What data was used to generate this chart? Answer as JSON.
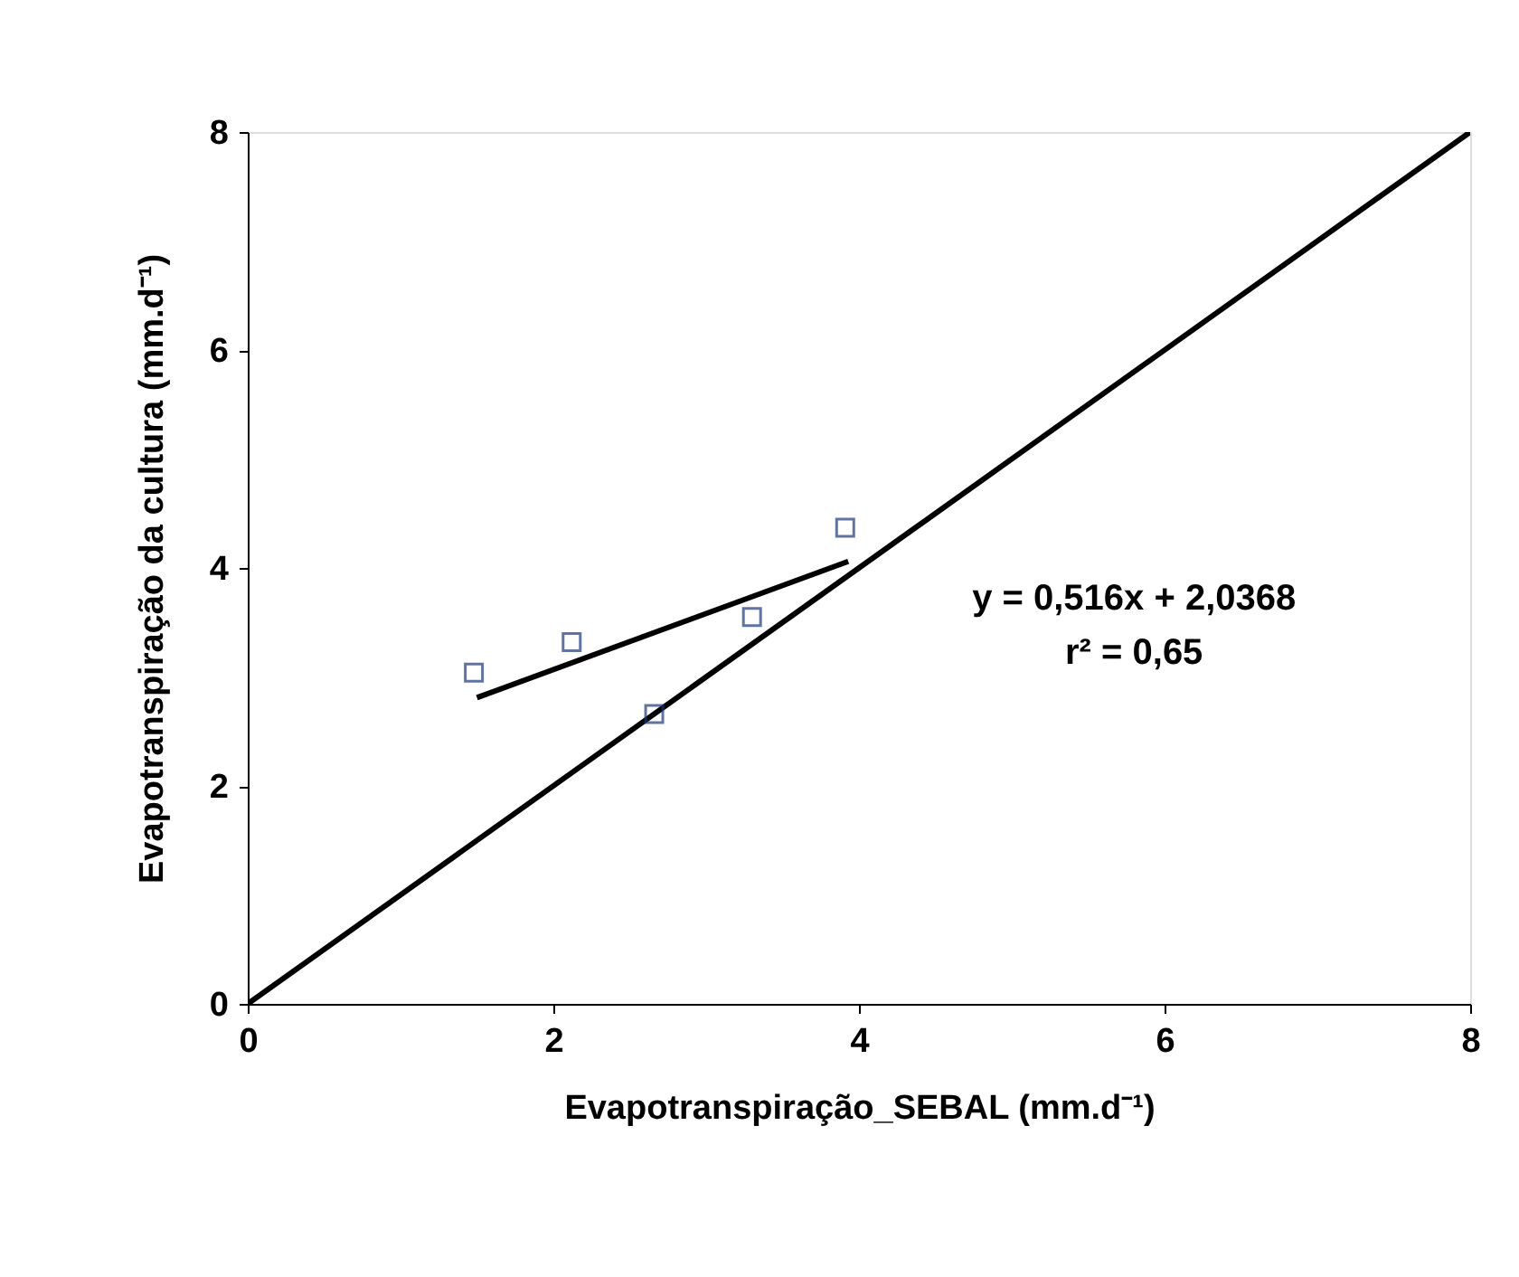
{
  "chart_data": {
    "type": "scatter",
    "xlabel": "Evapotranspiração_SEBAL (mm.d⁻¹)",
    "ylabel": "Evapotranspiração da cultura (mm.d⁻¹)",
    "xlim": [
      0,
      8
    ],
    "ylim": [
      0,
      8
    ],
    "xticks": [
      0,
      2,
      4,
      6,
      8
    ],
    "yticks": [
      0,
      2,
      4,
      6,
      8
    ],
    "grid": false,
    "series": [
      {
        "type": "line",
        "color": "#000000",
        "x": [
          1.5,
          3.93
        ],
        "values": [
          2.81,
          4.06
        ]
      },
      {
        "type": "line",
        "color": "#000000",
        "x": [
          0,
          8
        ],
        "values": [
          0,
          8
        ]
      },
      {
        "marker": "square",
        "color": "#1f3a7a",
        "x": [
          1.48,
          2.12,
          2.66,
          3.3,
          3.91
        ],
        "values": [
          3.04,
          3.32,
          2.66,
          3.55,
          4.37
        ]
      }
    ],
    "annotations": [
      "y = 0,516x + 2,0368",
      "r² = 0,65"
    ]
  }
}
